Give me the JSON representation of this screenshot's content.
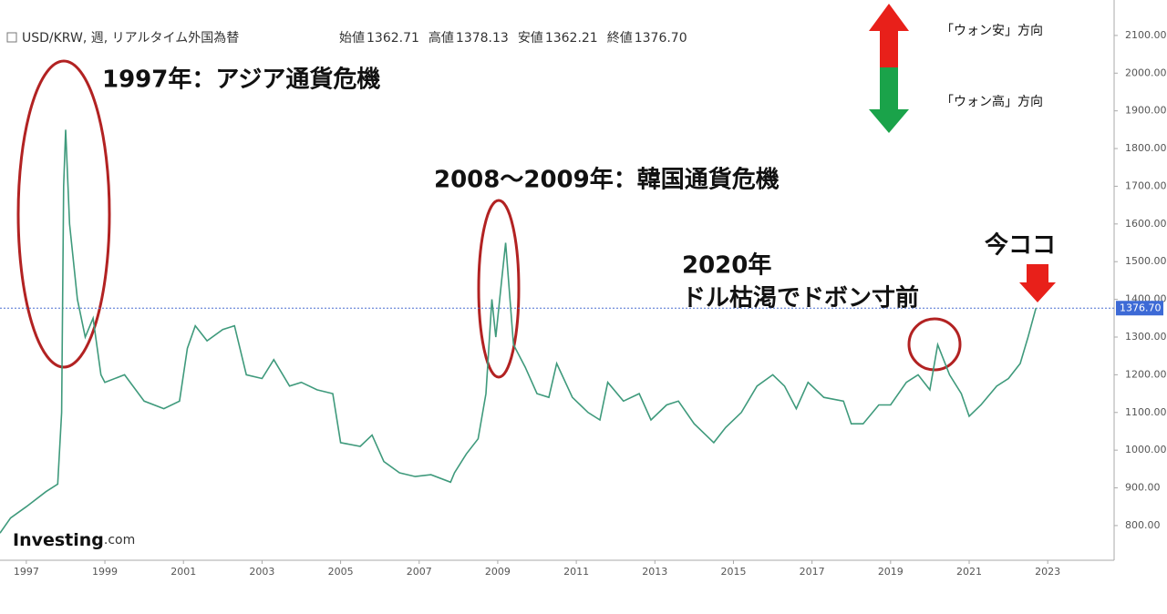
{
  "chart_data": {
    "type": "line",
    "header": "USD/KRW, 週, リアルタイム外国為替",
    "quote": {
      "labels": [
        "始値",
        "高値",
        "安値",
        "終値"
      ],
      "values": [
        1362.71,
        1378.13,
        1362.21,
        1376.7
      ],
      "value_labels": [
        "1362.71",
        "1378.13",
        "1362.21",
        "1376.70"
      ]
    },
    "annotations": [
      "1997年：アジア通貨危機",
      "2008～2009年：韓国通貨危機",
      "2020年",
      "ドル枯渇でドボン寸前",
      "今ココ",
      "「ウォン安」方向",
      "「ウォン高」方向"
    ],
    "brand": [
      "Investing",
      ".com"
    ],
    "series": [
      {
        "name": "USD/KRW",
        "color": "#3f9a7c",
        "x": [
          1996.33,
          1996.6,
          1997.0,
          1997.5,
          1997.8,
          1997.9,
          1997.95,
          1998.0,
          1998.1,
          1998.3,
          1998.5,
          1998.7,
          1998.9,
          1999.0,
          1999.5,
          2000.0,
          2000.5,
          2000.9,
          2001.1,
          2001.3,
          2001.6,
          2002.0,
          2002.3,
          2002.6,
          2003.0,
          2003.3,
          2003.7,
          2004.0,
          2004.4,
          2004.8,
          2005.0,
          2005.5,
          2005.8,
          2006.1,
          2006.5,
          2006.9,
          2007.3,
          2007.8,
          2007.9,
          2008.2,
          2008.5,
          2008.7,
          2008.85,
          2008.95,
          2009.1,
          2009.2,
          2009.4,
          2009.7,
          2010.0,
          2010.3,
          2010.5,
          2010.9,
          2011.3,
          2011.6,
          2011.8,
          2012.2,
          2012.6,
          2012.9,
          2013.3,
          2013.6,
          2014.0,
          2014.5,
          2014.8,
          2015.2,
          2015.6,
          2016.0,
          2016.3,
          2016.6,
          2016.9,
          2017.3,
          2017.8,
          2018.0,
          2018.3,
          2018.7,
          2019.0,
          2019.4,
          2019.7,
          2020.0,
          2020.2,
          2020.5,
          2020.8,
          2021.0,
          2021.3,
          2021.7,
          2022.0,
          2022.3,
          2022.5,
          2022.7
        ],
        "values": [
          780,
          820,
          850,
          890,
          910,
          1100,
          1700,
          1850,
          1600,
          1400,
          1300,
          1350,
          1200,
          1180,
          1200,
          1130,
          1110,
          1130,
          1270,
          1330,
          1290,
          1320,
          1330,
          1200,
          1190,
          1240,
          1170,
          1180,
          1160,
          1150,
          1020,
          1010,
          1040,
          970,
          940,
          930,
          935,
          915,
          940,
          990,
          1030,
          1150,
          1400,
          1300,
          1450,
          1550,
          1280,
          1220,
          1150,
          1140,
          1230,
          1140,
          1100,
          1080,
          1180,
          1130,
          1150,
          1080,
          1120,
          1130,
          1070,
          1020,
          1060,
          1100,
          1170,
          1200,
          1170,
          1110,
          1180,
          1140,
          1130,
          1070,
          1070,
          1120,
          1120,
          1180,
          1200,
          1160,
          1280,
          1200,
          1150,
          1090,
          1120,
          1170,
          1190,
          1230,
          1300,
          1377
        ]
      }
    ],
    "xlim": [
      1996.33,
      2024.69
    ],
    "xticks": [
      1997,
      1999,
      2001,
      2003,
      2005,
      2007,
      2009,
      2011,
      2013,
      2015,
      2017,
      2019,
      2021,
      2023
    ],
    "ylim": [
      708,
      2194
    ],
    "yticks": [
      {
        "value": 800,
        "label": "800.00"
      },
      {
        "value": 900,
        "label": "900.00"
      },
      {
        "value": 1000,
        "label": "1000.00"
      },
      {
        "value": 1100,
        "label": "1100.00"
      },
      {
        "value": 1200,
        "label": "1200.00"
      },
      {
        "value": 1300,
        "label": "1300.00"
      },
      {
        "value": 1400,
        "label": "1400.00"
      },
      {
        "value": 1500,
        "label": "1500.00"
      },
      {
        "value": 1600,
        "label": "1600.00"
      },
      {
        "value": 1700,
        "label": "1700.00"
      },
      {
        "value": 1800,
        "label": "1800.00"
      },
      {
        "value": 1900,
        "label": "1900.00"
      },
      {
        "value": 2000,
        "label": "2000.00"
      },
      {
        "value": 2100,
        "label": "2100.00"
      }
    ],
    "grid": false
  }
}
